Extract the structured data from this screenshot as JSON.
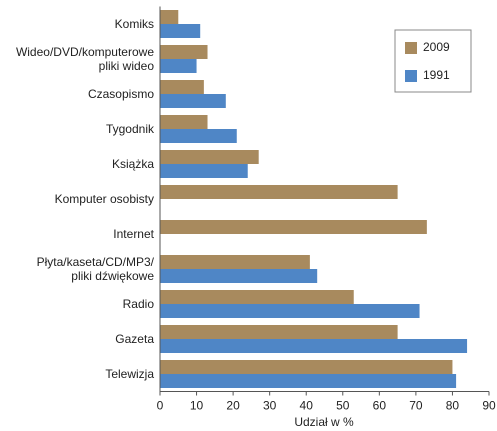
{
  "chart_data": {
    "type": "hbar",
    "xlabel": "Udział w %",
    "categories": [
      "Komiks",
      "Wideo/DVD/komputerowe\npliki wideo",
      "Czasopismo",
      "Tygodnik",
      "Książka",
      "Komputer osobisty",
      "Internet",
      "Płyta/kaseta/CD/MP3/\npliki dźwiękowe",
      "Radio",
      "Gazeta",
      "Telewizja"
    ],
    "series": [
      {
        "name": "2009",
        "color": "#a88a5e",
        "values": [
          5,
          13,
          12,
          13,
          27,
          65,
          73,
          41,
          53,
          65,
          80
        ]
      },
      {
        "name": "1991",
        "color": "#4f86c6",
        "values": [
          11,
          10,
          18,
          21,
          24,
          null,
          null,
          43,
          71,
          84,
          81
        ]
      }
    ],
    "xlim": [
      0,
      90
    ],
    "xticks": [
      0,
      10,
      20,
      30,
      40,
      50,
      60,
      70,
      80,
      90
    ],
    "legend": "upper right"
  }
}
